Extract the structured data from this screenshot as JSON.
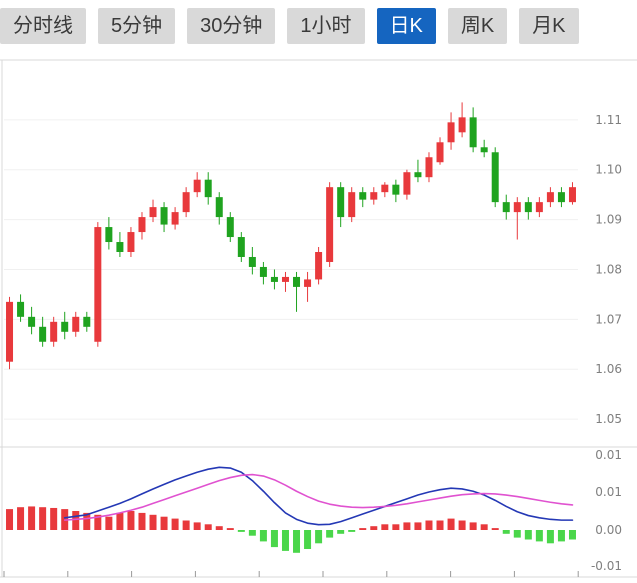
{
  "tabs": [
    {
      "label": "分时线",
      "active": false
    },
    {
      "label": "5分钟",
      "active": false
    },
    {
      "label": "30分钟",
      "active": false
    },
    {
      "label": "1小时",
      "active": false
    },
    {
      "label": "日K",
      "active": true
    },
    {
      "label": "周K",
      "active": false
    },
    {
      "label": "月K",
      "active": false
    }
  ],
  "colors": {
    "up": "#e8393c",
    "down": "#1fa31f",
    "hist_up": "#e8393c",
    "hist_down": "#4ad64a",
    "dif": "#2438b5",
    "dea": "#e052d0",
    "axis_text": "#7f7f7f",
    "grid": "#f0f0f0",
    "border": "#d9d9d9",
    "tick": "#999999",
    "tab_bg": "#d9d9d9",
    "tab_text": "#3a3a3a",
    "tab_active_bg": "#1565c0",
    "tab_active_text": "#ffffff"
  },
  "chart_data": {
    "type": "candlestick",
    "subchart": "macd",
    "title": "",
    "price_axis_labels": [
      "1.11",
      "1.10",
      "1.09",
      "1.08",
      "1.07",
      "1.06",
      "1.05"
    ],
    "price_axis_values": [
      1.11,
      1.1,
      1.09,
      1.08,
      1.07,
      1.06,
      1.05
    ],
    "price_range": [
      1.045,
      1.122
    ],
    "macd_axis_labels": [
      "0.01",
      "0.01",
      "0.00",
      "-0.01"
    ],
    "macd_range": [
      -0.012,
      0.021
    ],
    "candles": [
      [
        1.0615,
        1.0745,
        1.06,
        1.0735
      ],
      [
        1.0735,
        1.075,
        1.0695,
        1.0705
      ],
      [
        1.0705,
        1.0725,
        1.067,
        1.0685
      ],
      [
        1.0685,
        1.0705,
        1.0645,
        1.0655
      ],
      [
        1.0655,
        1.0705,
        1.0645,
        1.0695
      ],
      [
        1.0695,
        1.0715,
        1.066,
        1.0675
      ],
      [
        1.0675,
        1.0715,
        1.0665,
        1.0705
      ],
      [
        1.0705,
        1.0715,
        1.0675,
        1.0685
      ],
      [
        1.0655,
        1.0895,
        1.0645,
        1.0885
      ],
      [
        1.0885,
        1.0905,
        1.084,
        1.0855
      ],
      [
        1.0855,
        1.0875,
        1.0825,
        1.0835
      ],
      [
        1.0835,
        1.0885,
        1.0825,
        1.0875
      ],
      [
        1.0875,
        1.0915,
        1.086,
        1.0905
      ],
      [
        1.0905,
        1.094,
        1.0895,
        1.0925
      ],
      [
        1.0925,
        1.0935,
        1.0875,
        1.089
      ],
      [
        1.089,
        1.0925,
        1.088,
        1.0915
      ],
      [
        1.0915,
        1.0965,
        1.0905,
        1.0955
      ],
      [
        1.0955,
        1.0995,
        1.0945,
        1.098
      ],
      [
        1.098,
        1.0995,
        1.093,
        1.0945
      ],
      [
        1.0945,
        1.0955,
        1.089,
        1.0905
      ],
      [
        1.0905,
        1.0915,
        1.0855,
        1.0865
      ],
      [
        1.0865,
        1.0875,
        1.0815,
        1.0825
      ],
      [
        1.0825,
        1.0845,
        1.079,
        1.0805
      ],
      [
        1.0805,
        1.0815,
        1.077,
        1.0785
      ],
      [
        1.0785,
        1.08,
        1.076,
        1.0775
      ],
      [
        1.0775,
        1.0795,
        1.0755,
        1.0785
      ],
      [
        1.0785,
        1.0795,
        1.0715,
        1.0765
      ],
      [
        1.0765,
        1.0795,
        1.0735,
        1.078
      ],
      [
        1.078,
        1.0845,
        1.077,
        1.0835
      ],
      [
        1.0815,
        1.0975,
        1.0805,
        1.0965
      ],
      [
        1.0965,
        1.0975,
        1.0885,
        1.0905
      ],
      [
        1.0905,
        1.0965,
        1.0895,
        1.0955
      ],
      [
        1.0955,
        1.0965,
        1.0925,
        1.094
      ],
      [
        1.094,
        1.0965,
        1.093,
        1.0955
      ],
      [
        1.0955,
        1.0975,
        1.0945,
        1.097
      ],
      [
        1.097,
        1.098,
        1.0935,
        1.095
      ],
      [
        1.095,
        1.1,
        1.094,
        1.0995
      ],
      [
        1.0995,
        1.102,
        1.0975,
        1.0985
      ],
      [
        1.0985,
        1.1035,
        1.0975,
        1.1025
      ],
      [
        1.1015,
        1.1065,
        1.101,
        1.1055
      ],
      [
        1.1055,
        1.1115,
        1.104,
        1.1095
      ],
      [
        1.1075,
        1.1135,
        1.1065,
        1.1105
      ],
      [
        1.1105,
        1.1125,
        1.1035,
        1.1045
      ],
      [
        1.1045,
        1.106,
        1.1025,
        1.1035
      ],
      [
        1.1035,
        1.1045,
        1.0925,
        1.0935
      ],
      [
        1.0935,
        1.095,
        1.09,
        1.0915
      ],
      [
        1.0915,
        1.0945,
        1.086,
        1.0935
      ],
      [
        1.0935,
        1.0945,
        1.09,
        1.0915
      ],
      [
        1.0915,
        1.0945,
        1.0905,
        1.0935
      ],
      [
        1.0935,
        1.0965,
        1.0925,
        1.0955
      ],
      [
        1.0955,
        1.0965,
        1.0925,
        1.0935
      ],
      [
        1.0935,
        1.0975,
        1.093,
        1.0965
      ]
    ],
    "macd": {
      "hist": [
        0.0055,
        0.006,
        0.0062,
        0.006,
        0.0058,
        0.0055,
        0.005,
        0.0045,
        0.004,
        0.0035,
        0.0045,
        0.005,
        0.0045,
        0.004,
        0.0035,
        0.003,
        0.0025,
        0.002,
        0.0015,
        0.001,
        0.0005,
        -0.0005,
        -0.0015,
        -0.003,
        -0.0045,
        -0.0055,
        -0.006,
        -0.005,
        -0.0035,
        -0.002,
        -0.001,
        -0.0005,
        0.0005,
        0.001,
        0.0015,
        0.0015,
        0.002,
        0.002,
        0.0025,
        0.0025,
        0.003,
        0.0025,
        0.002,
        0.0015,
        0.0005,
        -0.001,
        -0.002,
        -0.0025,
        -0.003,
        -0.0035,
        -0.003,
        -0.0025
      ],
      "dif": [
        null,
        null,
        null,
        null,
        null,
        0.0032,
        0.0036,
        0.004,
        0.005,
        0.006,
        0.007,
        0.0082,
        0.0095,
        0.0108,
        0.012,
        0.0132,
        0.0142,
        0.0152,
        0.016,
        0.0165,
        0.0163,
        0.0152,
        0.013,
        0.0102,
        0.0072,
        0.0045,
        0.0028,
        0.0018,
        0.0014,
        0.0015,
        0.0022,
        0.0032,
        0.0042,
        0.0052,
        0.0062,
        0.0072,
        0.0082,
        0.0092,
        0.01,
        0.0106,
        0.011,
        0.0108,
        0.0102,
        0.0092,
        0.0078,
        0.0062,
        0.0048,
        0.0038,
        0.0032,
        0.0028,
        0.0026,
        0.0026
      ],
      "dea": [
        null,
        null,
        null,
        null,
        null,
        0.0026,
        0.0028,
        0.003,
        0.0034,
        0.0039,
        0.0045,
        0.0052,
        0.006,
        0.007,
        0.008,
        0.009,
        0.01,
        0.011,
        0.012,
        0.013,
        0.0138,
        0.0144,
        0.0146,
        0.0142,
        0.0132,
        0.0118,
        0.0102,
        0.0088,
        0.0076,
        0.0068,
        0.0063,
        0.006,
        0.0059,
        0.006,
        0.0062,
        0.0065,
        0.0069,
        0.0074,
        0.0079,
        0.0084,
        0.0089,
        0.0093,
        0.0095,
        0.0096,
        0.0095,
        0.0092,
        0.0088,
        0.0083,
        0.0078,
        0.0073,
        0.0069,
        0.0066
      ]
    }
  }
}
